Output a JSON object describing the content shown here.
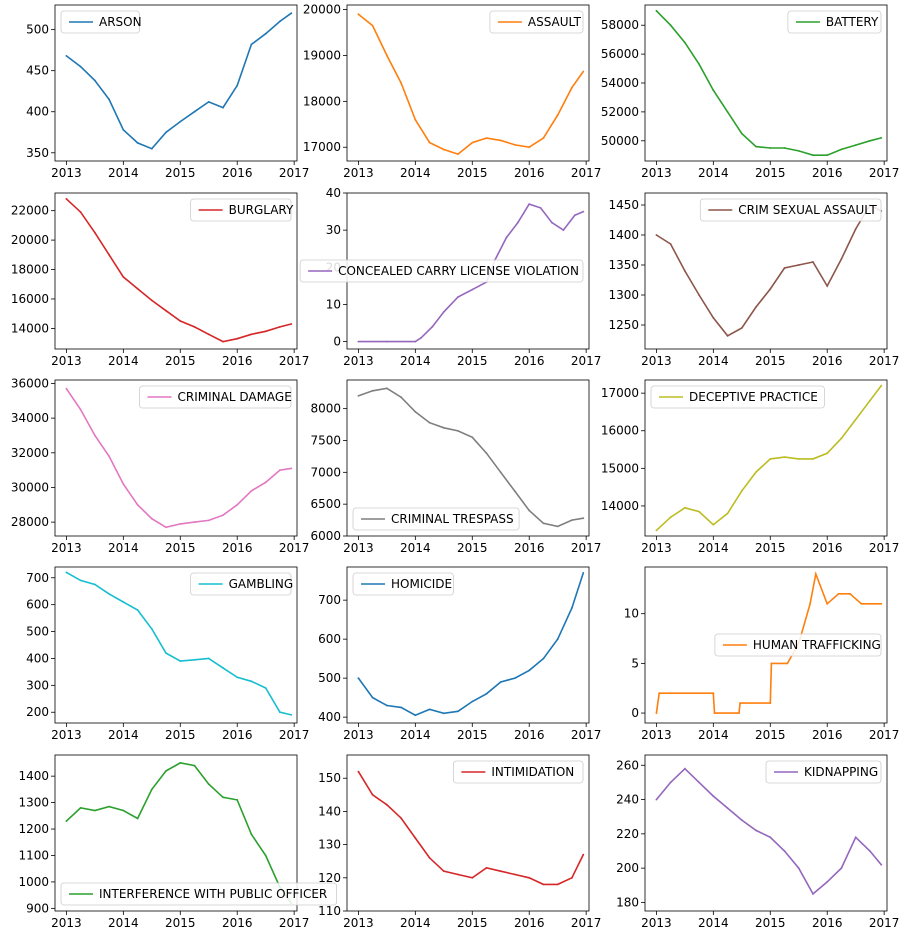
{
  "chart_data": [
    {
      "type": "line",
      "series": [
        {
          "name": "ARSON",
          "color": "#1f77b4",
          "x": [
            2013.0,
            2013.25,
            2013.5,
            2013.75,
            2014.0,
            2014.25,
            2014.5,
            2014.75,
            2015.0,
            2015.25,
            2015.5,
            2015.75,
            2016.0,
            2016.25,
            2016.5,
            2016.75,
            2016.95
          ],
          "values": [
            468,
            455,
            438,
            415,
            378,
            362,
            355,
            375,
            388,
            400,
            412,
            405,
            432,
            482,
            495,
            510,
            520
          ]
        }
      ],
      "xticks": [
        "2013",
        "2014",
        "2015",
        "2016",
        "2017"
      ],
      "yticks": [
        350,
        400,
        450,
        500
      ],
      "xlim": [
        2012.8,
        2017.05
      ],
      "ylim": [
        340,
        530
      ],
      "legend": "top-left",
      "grid": false
    },
    {
      "type": "line",
      "series": [
        {
          "name": "ASSAULT",
          "color": "#ff7f0e",
          "x": [
            2013.0,
            2013.25,
            2013.5,
            2013.75,
            2014.0,
            2014.25,
            2014.5,
            2014.75,
            2015.0,
            2015.25,
            2015.5,
            2015.75,
            2016.0,
            2016.25,
            2016.5,
            2016.75,
            2016.95
          ],
          "values": [
            19900,
            19650,
            19000,
            18400,
            17600,
            17100,
            16950,
            16850,
            17100,
            17200,
            17150,
            17050,
            17000,
            17200,
            17700,
            18300,
            18650
          ]
        }
      ],
      "xticks": [
        "2013",
        "2014",
        "2015",
        "2016",
        "2017"
      ],
      "yticks": [
        17000,
        18000,
        19000,
        20000
      ],
      "xlim": [
        2012.8,
        2017.05
      ],
      "ylim": [
        16700,
        20100
      ],
      "legend": "top-right",
      "grid": false
    },
    {
      "type": "line",
      "series": [
        {
          "name": "BATTERY",
          "color": "#2ca02c",
          "x": [
            2013.0,
            2013.25,
            2013.5,
            2013.75,
            2014.0,
            2014.25,
            2014.5,
            2014.75,
            2015.0,
            2015.25,
            2015.5,
            2015.75,
            2016.0,
            2016.25,
            2016.5,
            2016.75,
            2016.95
          ],
          "values": [
            59000,
            58000,
            56800,
            55300,
            53500,
            52000,
            50500,
            49600,
            49500,
            49500,
            49300,
            49000,
            49000,
            49400,
            49700,
            50000,
            50200
          ]
        }
      ],
      "xticks": [
        "2013",
        "2014",
        "2015",
        "2016",
        "2017"
      ],
      "yticks": [
        50000,
        52000,
        54000,
        56000,
        58000
      ],
      "xlim": [
        2012.8,
        2017.05
      ],
      "ylim": [
        48600,
        59400
      ],
      "legend": "top-right",
      "grid": false
    },
    {
      "type": "line",
      "series": [
        {
          "name": "BURGLARY",
          "color": "#d62728",
          "x": [
            2013.0,
            2013.25,
            2013.5,
            2013.75,
            2014.0,
            2014.25,
            2014.5,
            2014.75,
            2015.0,
            2015.25,
            2015.5,
            2015.75,
            2016.0,
            2016.25,
            2016.5,
            2016.75,
            2016.95
          ],
          "values": [
            22800,
            21900,
            20500,
            19000,
            17500,
            16700,
            15900,
            15200,
            14500,
            14100,
            13600,
            13100,
            13300,
            13600,
            13800,
            14100,
            14300
          ]
        }
      ],
      "xticks": [
        "2013",
        "2014",
        "2015",
        "2016",
        "2017"
      ],
      "yticks": [
        14000,
        16000,
        18000,
        20000,
        22000
      ],
      "xlim": [
        2012.8,
        2017.05
      ],
      "ylim": [
        12600,
        23200
      ],
      "legend": "top-right",
      "grid": false
    },
    {
      "type": "line",
      "series": [
        {
          "name": "CONCEALED CARRY LICENSE VIOLATION",
          "color": "#9467bd",
          "x": [
            2013.0,
            2013.5,
            2014.0,
            2014.1,
            2014.3,
            2014.5,
            2014.75,
            2015.0,
            2015.25,
            2015.4,
            2015.6,
            2015.8,
            2016.0,
            2016.2,
            2016.4,
            2016.6,
            2016.8,
            2016.95
          ],
          "values": [
            0,
            0,
            0,
            1,
            4,
            8,
            12,
            14,
            16,
            22,
            28,
            32,
            37,
            36,
            32,
            30,
            34,
            35
          ]
        }
      ],
      "xticks": [
        "2013",
        "2014",
        "2015",
        "2016",
        "2017"
      ],
      "yticks": [
        0,
        10,
        20,
        30,
        40
      ],
      "xlim": [
        2012.8,
        2017.05
      ],
      "ylim": [
        -2,
        40
      ],
      "legend": "center-right",
      "grid": false
    },
    {
      "type": "line",
      "series": [
        {
          "name": "CRIM SEXUAL ASSAULT",
          "color": "#8c564b",
          "x": [
            2013.0,
            2013.25,
            2013.5,
            2013.75,
            2014.0,
            2014.25,
            2014.5,
            2014.75,
            2015.0,
            2015.25,
            2015.5,
            2015.75,
            2016.0,
            2016.25,
            2016.5,
            2016.75,
            2016.95
          ],
          "values": [
            1400,
            1385,
            1340,
            1300,
            1262,
            1232,
            1245,
            1280,
            1310,
            1345,
            1350,
            1355,
            1315,
            1360,
            1410,
            1450,
            1440
          ]
        }
      ],
      "xticks": [
        "2013",
        "2014",
        "2015",
        "2016",
        "2017"
      ],
      "yticks": [
        1250,
        1300,
        1350,
        1400,
        1450
      ],
      "xlim": [
        2012.8,
        2017.05
      ],
      "ylim": [
        1210,
        1470
      ],
      "legend": "top-right",
      "grid": false
    },
    {
      "type": "line",
      "series": [
        {
          "name": "CRIMINAL DAMAGE",
          "color": "#e377c2",
          "x": [
            2013.0,
            2013.25,
            2013.5,
            2013.75,
            2014.0,
            2014.25,
            2014.5,
            2014.75,
            2015.0,
            2015.25,
            2015.5,
            2015.75,
            2016.0,
            2016.25,
            2016.5,
            2016.75,
            2016.95
          ],
          "values": [
            35700,
            34500,
            33000,
            31800,
            30200,
            29000,
            28200,
            27700,
            27900,
            28000,
            28100,
            28400,
            29000,
            29800,
            30300,
            31000,
            31100
          ]
        }
      ],
      "xticks": [
        "2013",
        "2014",
        "2015",
        "2016",
        "2017"
      ],
      "yticks": [
        28000,
        30000,
        32000,
        34000,
        36000
      ],
      "xlim": [
        2012.8,
        2017.05
      ],
      "ylim": [
        27200,
        36200
      ],
      "legend": "top-right",
      "grid": false
    },
    {
      "type": "line",
      "series": [
        {
          "name": "CRIMINAL TRESPASS",
          "color": "#7f7f7f",
          "x": [
            2013.0,
            2013.25,
            2013.5,
            2013.75,
            2014.0,
            2014.25,
            2014.5,
            2014.75,
            2015.0,
            2015.25,
            2015.5,
            2015.75,
            2016.0,
            2016.25,
            2016.5,
            2016.75,
            2016.95
          ],
          "values": [
            8200,
            8280,
            8320,
            8180,
            7950,
            7780,
            7700,
            7650,
            7550,
            7300,
            7000,
            6700,
            6400,
            6200,
            6150,
            6250,
            6280
          ]
        }
      ],
      "xticks": [
        "2013",
        "2014",
        "2015",
        "2016",
        "2017"
      ],
      "yticks": [
        6000,
        6500,
        7000,
        7500,
        8000
      ],
      "xlim": [
        2012.8,
        2017.05
      ],
      "ylim": [
        6000,
        8450
      ],
      "legend": "bottom-left",
      "grid": false
    },
    {
      "type": "line",
      "series": [
        {
          "name": "DECEPTIVE PRACTICE",
          "color": "#bcbd22",
          "x": [
            2013.0,
            2013.25,
            2013.5,
            2013.75,
            2014.0,
            2014.25,
            2014.5,
            2014.75,
            2015.0,
            2015.25,
            2015.5,
            2015.75,
            2016.0,
            2016.25,
            2016.5,
            2016.75,
            2016.95
          ],
          "values": [
            13350,
            13700,
            13950,
            13850,
            13500,
            13800,
            14400,
            14900,
            15250,
            15300,
            15250,
            15250,
            15400,
            15800,
            16300,
            16800,
            17200
          ]
        }
      ],
      "xticks": [
        "2013",
        "2014",
        "2015",
        "2016",
        "2017"
      ],
      "yticks": [
        14000,
        15000,
        16000,
        17000
      ],
      "xlim": [
        2012.8,
        2017.05
      ],
      "ylim": [
        13200,
        17350
      ],
      "legend": "top-left",
      "grid": false
    },
    {
      "type": "line",
      "series": [
        {
          "name": "GAMBLING",
          "color": "#17becf",
          "x": [
            2013.0,
            2013.25,
            2013.5,
            2013.75,
            2014.0,
            2014.25,
            2014.5,
            2014.75,
            2015.0,
            2015.25,
            2015.5,
            2015.75,
            2016.0,
            2016.25,
            2016.5,
            2016.75,
            2016.95
          ],
          "values": [
            720,
            690,
            675,
            640,
            610,
            580,
            510,
            420,
            390,
            395,
            400,
            365,
            330,
            315,
            290,
            200,
            190
          ]
        }
      ],
      "xticks": [
        "2013",
        "2014",
        "2015",
        "2016",
        "2017"
      ],
      "yticks": [
        200,
        300,
        400,
        500,
        600,
        700
      ],
      "xlim": [
        2012.8,
        2017.05
      ],
      "ylim": [
        160,
        740
      ],
      "legend": "top-right",
      "grid": false
    },
    {
      "type": "line",
      "series": [
        {
          "name": "HOMICIDE",
          "color": "#1f77b4",
          "x": [
            2013.0,
            2013.25,
            2013.5,
            2013.75,
            2014.0,
            2014.25,
            2014.5,
            2014.75,
            2015.0,
            2015.25,
            2015.5,
            2015.75,
            2016.0,
            2016.25,
            2016.5,
            2016.75,
            2016.95
          ],
          "values": [
            500,
            450,
            430,
            425,
            405,
            420,
            410,
            415,
            440,
            460,
            490,
            500,
            520,
            550,
            600,
            680,
            770
          ]
        }
      ],
      "xticks": [
        "2013",
        "2014",
        "2015",
        "2016",
        "2017"
      ],
      "yticks": [
        400,
        500,
        600,
        700
      ],
      "xlim": [
        2012.8,
        2017.05
      ],
      "ylim": [
        385,
        785
      ],
      "legend": "top-left",
      "grid": false
    },
    {
      "type": "line",
      "series": [
        {
          "name": "HUMAN TRAFFICKING",
          "color": "#ff7f0e",
          "x": [
            2013.0,
            2013.05,
            2014.0,
            2014.02,
            2014.45,
            2014.47,
            2015.0,
            2015.02,
            2015.3,
            2015.5,
            2015.7,
            2015.8,
            2016.0,
            2016.2,
            2016.4,
            2016.6,
            2016.95
          ],
          "values": [
            0,
            2,
            2,
            0,
            0,
            1,
            1,
            5,
            5,
            7,
            11,
            14,
            11,
            12,
            12,
            11,
            11
          ]
        }
      ],
      "xticks": [
        "2013",
        "2014",
        "2015",
        "2016",
        "2017"
      ],
      "yticks": [
        0,
        5,
        10
      ],
      "xlim": [
        2012.8,
        2017.05
      ],
      "ylim": [
        -1,
        14.7
      ],
      "legend": "center-right",
      "grid": false
    },
    {
      "type": "line",
      "series": [
        {
          "name": "INTERFERENCE WITH PUBLIC OFFICER",
          "color": "#2ca02c",
          "x": [
            2013.0,
            2013.25,
            2013.5,
            2013.75,
            2014.0,
            2014.25,
            2014.5,
            2014.75,
            2015.0,
            2015.25,
            2015.5,
            2015.75,
            2016.0,
            2016.25,
            2016.5,
            2016.75,
            2016.95
          ],
          "values": [
            1230,
            1280,
            1270,
            1285,
            1270,
            1240,
            1350,
            1420,
            1450,
            1440,
            1370,
            1320,
            1310,
            1180,
            1100,
            980,
            920
          ]
        }
      ],
      "xticks": [
        "2013",
        "2014",
        "2015",
        "2016",
        "2017"
      ],
      "yticks": [
        900,
        1000,
        1100,
        1200,
        1300,
        1400
      ],
      "xlim": [
        2012.8,
        2017.05
      ],
      "ylim": [
        890,
        1480
      ],
      "legend": "bottom-left",
      "grid": false
    },
    {
      "type": "line",
      "series": [
        {
          "name": "INTIMIDATION",
          "color": "#d62728",
          "x": [
            2013.0,
            2013.25,
            2013.5,
            2013.75,
            2014.0,
            2014.25,
            2014.5,
            2014.75,
            2015.0,
            2015.25,
            2015.5,
            2015.75,
            2016.0,
            2016.25,
            2016.5,
            2016.75,
            2016.95
          ],
          "values": [
            152,
            145,
            142,
            138,
            132,
            126,
            122,
            121,
            120,
            123,
            122,
            121,
            120,
            118,
            118,
            120,
            127
          ]
        }
      ],
      "xticks": [
        "2013",
        "2014",
        "2015",
        "2016",
        "2017"
      ],
      "yticks": [
        110,
        120,
        130,
        140,
        150
      ],
      "xlim": [
        2012.8,
        2017.05
      ],
      "ylim": [
        110,
        157
      ],
      "legend": "top-right",
      "grid": false
    },
    {
      "type": "line",
      "series": [
        {
          "name": "KIDNAPPING",
          "color": "#9467bd",
          "x": [
            2013.0,
            2013.25,
            2013.5,
            2013.75,
            2014.0,
            2014.25,
            2014.5,
            2014.75,
            2015.0,
            2015.25,
            2015.5,
            2015.75,
            2016.0,
            2016.25,
            2016.5,
            2016.75,
            2016.95
          ],
          "values": [
            240,
            250,
            258,
            250,
            242,
            235,
            228,
            222,
            218,
            210,
            200,
            185,
            192,
            200,
            218,
            210,
            202
          ]
        }
      ],
      "xticks": [
        "2013",
        "2014",
        "2015",
        "2016",
        "2017"
      ],
      "yticks": [
        180,
        200,
        220,
        240,
        260
      ],
      "xlim": [
        2012.8,
        2017.05
      ],
      "ylim": [
        175,
        266
      ],
      "legend": "top-right",
      "grid": false
    }
  ]
}
